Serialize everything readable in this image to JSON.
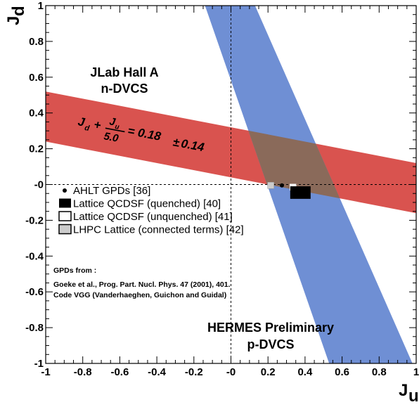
{
  "chart_data": {
    "type": "band-plot",
    "xlabel": "J",
    "xlabel_sub": "u",
    "ylabel": "J",
    "ylabel_sub": "d",
    "xlim": [
      -1,
      1
    ],
    "ylim": [
      -1,
      1
    ],
    "x_ticks": [
      "-1",
      "-0.8",
      "-0.6",
      "-0.4",
      "-0.2",
      "-0",
      "0.2",
      "0.4",
      "0.6",
      "0.8",
      "1"
    ],
    "y_ticks": [
      "-1",
      "-0.8",
      "-0.6",
      "-0.4",
      "-0.2",
      "-0",
      "0.2",
      "0.4",
      "0.6",
      "0.8",
      "1"
    ],
    "colors": {
      "red_band": "#d9534f",
      "blue_band": "#6f8fd4",
      "overlap": "#8a6a5a"
    },
    "bands": [
      {
        "name": "JLab Hall A n-DVCS",
        "color": "#d9534f",
        "relation": "Jd + Ju/5.0 = 0.18 ± 0.14",
        "central": 0.18,
        "error": 0.14,
        "divisor": 5.0
      },
      {
        "name": "HERMES Preliminary p-DVCS",
        "color": "#6f8fd4",
        "polygon": [
          [
            -0.14,
            1.0
          ],
          [
            0.13,
            1.0
          ],
          [
            0.98,
            -1.0
          ],
          [
            0.53,
            -1.0
          ]
        ]
      }
    ],
    "points": [
      {
        "name": "AHLT GPDs",
        "x": 0.275,
        "y": -0.005,
        "style": "dot"
      },
      {
        "name": "LHPC Lattice (connected terms)",
        "x": 0.215,
        "y": -0.005,
        "style": "grey-square"
      },
      {
        "name": "Lattice QCDSF (unquenched)",
        "x": 0.335,
        "y": -0.015,
        "style": "white-square"
      },
      {
        "name": "Lattice QCDSF (quenched)",
        "x": 0.375,
        "y": -0.045,
        "w": 0.11,
        "h": 0.07,
        "style": "black-box"
      }
    ],
    "legend": [
      {
        "label": "AHLT GPDs [36]",
        "marker": "dot"
      },
      {
        "label": "Lattice QCDSF (quenched) [40]",
        "marker": "black-square"
      },
      {
        "label": "Lattice QCDSF (unquenched) [41]",
        "marker": "white-square"
      },
      {
        "label": "LHPC Lattice (connected terms) [42]",
        "marker": "grey-square"
      }
    ],
    "annotations": {
      "jlab_line1": "JLab Hall A",
      "jlab_line2": "n-DVCS",
      "hermes_line1": "HERMES Preliminary",
      "hermes_line2": "p-DVCS",
      "gpd_line1": "GPDs from :",
      "gpd_line2": "Goeke et al., Prog. Part. Nucl. Phys. 47 (2001), 401.",
      "gpd_line3": "Code VGG  (Vanderhaeghen, Guichon and Guidal)",
      "formula_jd": "J",
      "formula_jd_sub": "d",
      "formula_plus": "+",
      "formula_num": "J",
      "formula_num_sub": "u",
      "formula_den": "5.0",
      "formula_rhs": "= 0.18",
      "formula_pm": "±",
      "formula_err": "0.14"
    }
  }
}
